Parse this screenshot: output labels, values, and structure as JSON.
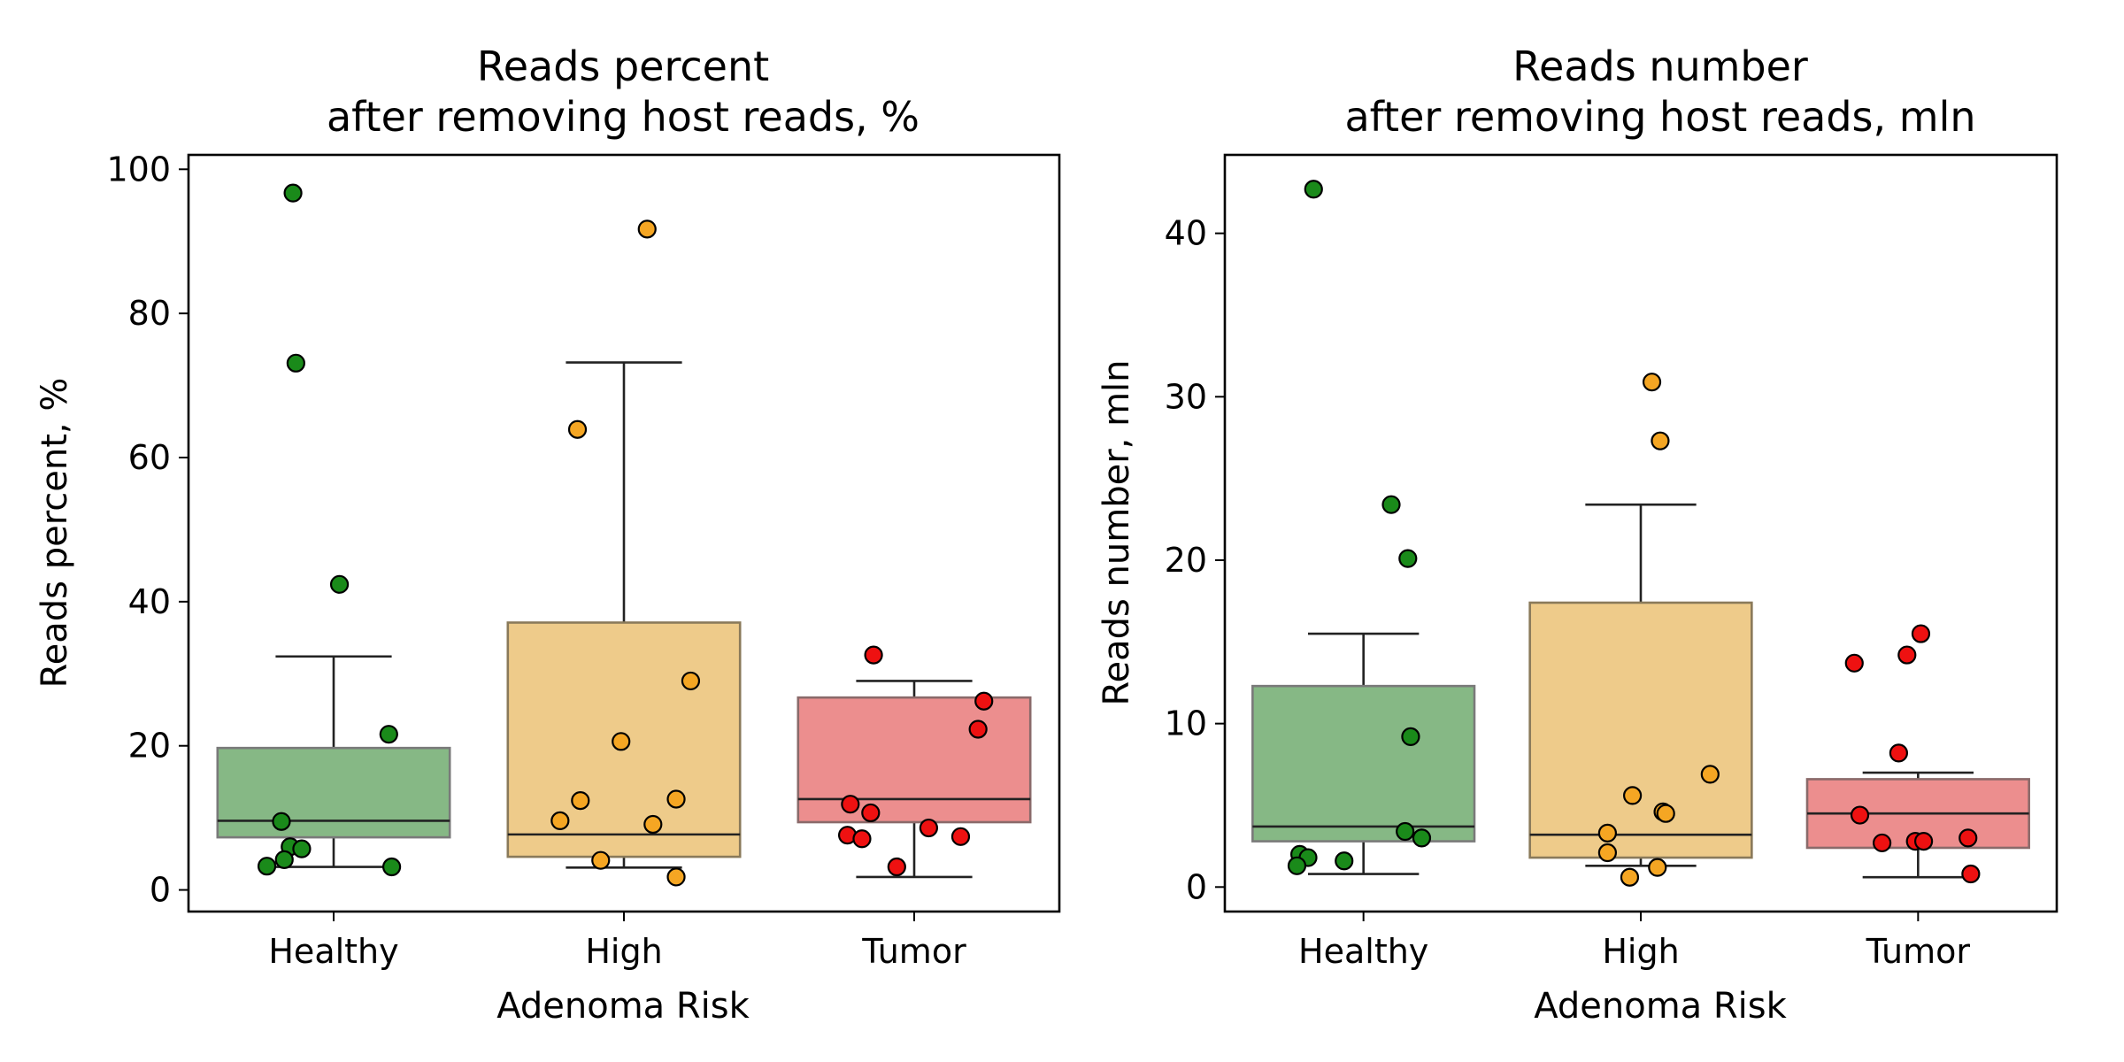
{
  "colors": {
    "Healthy": {
      "box": "#86b885",
      "edge": "#7a7a7a",
      "point": "#1a8a1a"
    },
    "High": {
      "box": "#eecb8a",
      "edge": "#8a7a5a",
      "point": "#f5a623"
    },
    "Tumor": {
      "box": "#ec8e8e",
      "edge": "#8a6a6a",
      "point": "#ee1111"
    }
  },
  "chart_data": [
    {
      "type": "box",
      "title_line1": "Reads percent",
      "title_line2": "after removing host reads, %",
      "xlabel": "Adenoma Risk",
      "ylabel": "Reads percent, %",
      "ylim": [
        -3,
        102
      ],
      "yticks": [
        0,
        20,
        40,
        60,
        80,
        100
      ],
      "categories": [
        "Healthy",
        "High",
        "Tumor"
      ],
      "boxes": [
        {
          "category": "Healthy",
          "q1": 7.3,
          "median": 9.6,
          "q3": 19.7,
          "whisker_low": 3.2,
          "whisker_high": 32.4
        },
        {
          "category": "High",
          "q1": 4.6,
          "median": 7.7,
          "q3": 37.1,
          "whisker_low": 3.1,
          "whisker_high": 73.2
        },
        {
          "category": "Tumor",
          "q1": 9.4,
          "median": 12.6,
          "q3": 26.7,
          "whisker_low": 1.8,
          "whisker_high": 29.0
        }
      ],
      "points": [
        {
          "category": "Healthy",
          "jitter": -0.14,
          "y": 96.7
        },
        {
          "category": "Healthy",
          "jitter": -0.13,
          "y": 73.1
        },
        {
          "category": "Healthy",
          "jitter": 0.02,
          "y": 42.4
        },
        {
          "category": "Healthy",
          "jitter": 0.19,
          "y": 21.6
        },
        {
          "category": "Healthy",
          "jitter": -0.18,
          "y": 9.5
        },
        {
          "category": "Healthy",
          "jitter": -0.15,
          "y": 6.0
        },
        {
          "category": "Healthy",
          "jitter": -0.11,
          "y": 5.7
        },
        {
          "category": "Healthy",
          "jitter": -0.17,
          "y": 4.2
        },
        {
          "category": "Healthy",
          "jitter": -0.23,
          "y": 3.3
        },
        {
          "category": "Healthy",
          "jitter": 0.2,
          "y": 3.2
        },
        {
          "category": "High",
          "jitter": 0.08,
          "y": 91.7
        },
        {
          "category": "High",
          "jitter": -0.16,
          "y": 63.9
        },
        {
          "category": "High",
          "jitter": 0.23,
          "y": 29.0
        },
        {
          "category": "High",
          "jitter": -0.01,
          "y": 20.6
        },
        {
          "category": "High",
          "jitter": -0.15,
          "y": 12.4
        },
        {
          "category": "High",
          "jitter": 0.18,
          "y": 12.6
        },
        {
          "category": "High",
          "jitter": -0.22,
          "y": 9.6
        },
        {
          "category": "High",
          "jitter": 0.1,
          "y": 9.1
        },
        {
          "category": "High",
          "jitter": -0.08,
          "y": 4.1
        },
        {
          "category": "High",
          "jitter": 0.18,
          "y": 1.8
        },
        {
          "category": "Tumor",
          "jitter": -0.14,
          "y": 32.6
        },
        {
          "category": "Tumor",
          "jitter": 0.24,
          "y": 26.2
        },
        {
          "category": "Tumor",
          "jitter": 0.22,
          "y": 22.3
        },
        {
          "category": "Tumor",
          "jitter": -0.22,
          "y": 11.9
        },
        {
          "category": "Tumor",
          "jitter": -0.15,
          "y": 10.7
        },
        {
          "category": "Tumor",
          "jitter": 0.05,
          "y": 8.6
        },
        {
          "category": "Tumor",
          "jitter": -0.23,
          "y": 7.6
        },
        {
          "category": "Tumor",
          "jitter": -0.18,
          "y": 7.1
        },
        {
          "category": "Tumor",
          "jitter": 0.16,
          "y": 7.4
        },
        {
          "category": "Tumor",
          "jitter": -0.06,
          "y": 3.2
        }
      ]
    },
    {
      "type": "box",
      "title_line1": "Reads number",
      "title_line2": "after removing host reads, mln",
      "xlabel": "Adenoma Risk",
      "ylabel": "Reads number, mln",
      "ylim": [
        -1.5,
        44.8
      ],
      "yticks": [
        0,
        10,
        20,
        30,
        40
      ],
      "categories": [
        "Healthy",
        "High",
        "Tumor"
      ],
      "boxes": [
        {
          "category": "Healthy",
          "q1": 2.8,
          "median": 3.7,
          "q3": 12.3,
          "whisker_low": 0.8,
          "whisker_high": 15.5
        },
        {
          "category": "High",
          "q1": 1.8,
          "median": 3.2,
          "q3": 17.4,
          "whisker_low": 1.3,
          "whisker_high": 23.4
        },
        {
          "category": "Tumor",
          "q1": 2.4,
          "median": 4.5,
          "q3": 6.6,
          "whisker_low": 0.6,
          "whisker_high": 7.0
        }
      ],
      "points": [
        {
          "category": "Healthy",
          "jitter": -0.18,
          "y": 42.7
        },
        {
          "category": "Healthy",
          "jitter": 0.1,
          "y": 23.4
        },
        {
          "category": "Healthy",
          "jitter": 0.16,
          "y": 20.1
        },
        {
          "category": "Healthy",
          "jitter": 0.17,
          "y": 9.2
        },
        {
          "category": "Healthy",
          "jitter": 0.15,
          "y": 3.4
        },
        {
          "category": "Healthy",
          "jitter": 0.21,
          "y": 3.0
        },
        {
          "category": "Healthy",
          "jitter": -0.23,
          "y": 2.0
        },
        {
          "category": "Healthy",
          "jitter": -0.2,
          "y": 1.8
        },
        {
          "category": "Healthy",
          "jitter": -0.07,
          "y": 1.6
        },
        {
          "category": "Healthy",
          "jitter": -0.24,
          "y": 1.3
        },
        {
          "category": "High",
          "jitter": 0.04,
          "y": 30.9
        },
        {
          "category": "High",
          "jitter": 0.07,
          "y": 27.3
        },
        {
          "category": "High",
          "jitter": 0.25,
          "y": 6.9
        },
        {
          "category": "High",
          "jitter": -0.03,
          "y": 5.6
        },
        {
          "category": "High",
          "jitter": 0.08,
          "y": 4.6
        },
        {
          "category": "High",
          "jitter": 0.09,
          "y": 4.5
        },
        {
          "category": "High",
          "jitter": -0.12,
          "y": 3.3
        },
        {
          "category": "High",
          "jitter": -0.12,
          "y": 2.1
        },
        {
          "category": "High",
          "jitter": 0.06,
          "y": 1.2
        },
        {
          "category": "High",
          "jitter": -0.04,
          "y": 0.6
        },
        {
          "category": "Tumor",
          "jitter": 0.01,
          "y": 15.5
        },
        {
          "category": "Tumor",
          "jitter": -0.04,
          "y": 14.2
        },
        {
          "category": "Tumor",
          "jitter": -0.23,
          "y": 13.7
        },
        {
          "category": "Tumor",
          "jitter": -0.07,
          "y": 8.2
        },
        {
          "category": "Tumor",
          "jitter": -0.21,
          "y": 4.4
        },
        {
          "category": "Tumor",
          "jitter": -0.13,
          "y": 2.7
        },
        {
          "category": "Tumor",
          "jitter": -0.01,
          "y": 2.8
        },
        {
          "category": "Tumor",
          "jitter": 0.02,
          "y": 2.8
        },
        {
          "category": "Tumor",
          "jitter": 0.18,
          "y": 3.0
        },
        {
          "category": "Tumor",
          "jitter": 0.19,
          "y": 0.8
        }
      ]
    }
  ]
}
